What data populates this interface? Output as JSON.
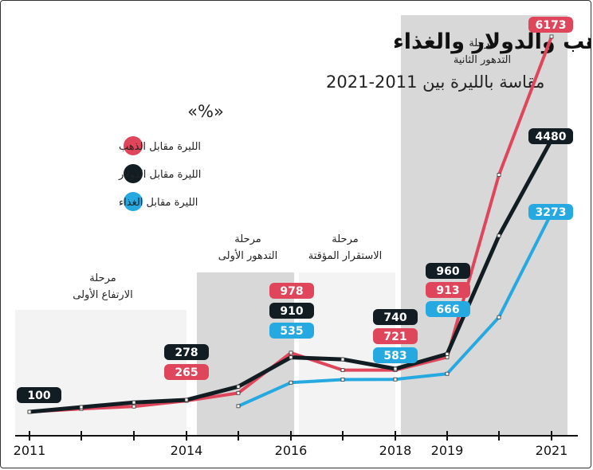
{
  "chart_data": {
    "type": "line",
    "title": "تضاعف أسعار الذهب والدولار والغذاء",
    "subtitle": "مقاسة بالليرة بين 2011-2021",
    "unit": "«%»",
    "x": [
      2011,
      2012,
      2013,
      2014,
      2015,
      2016,
      2017,
      2018,
      2019,
      2020,
      2021
    ],
    "x_ticks": [
      "2011",
      "2014",
      "2016",
      "2018",
      "2019",
      "2021"
    ],
    "x_tick_values": [
      2011,
      2014,
      2016,
      2018,
      2019,
      2021
    ],
    "xlim": [
      2011,
      2021
    ],
    "ylim": [
      0,
      6400
    ],
    "grid": false,
    "legend_position": "top-left",
    "colors": {
      "gold": "#e0465b",
      "dollar": "#111d22",
      "food": "#25a9e0"
    },
    "series": [
      {
        "key": "dollar",
        "name": "الليرة مقابل الدولار",
        "color": "#111d22",
        "values": [
          100,
          170,
          240,
          278,
          475,
          910,
          880,
          740,
          960,
          2900,
          4480
        ]
      },
      {
        "key": "gold",
        "name": "الليرة مقابل الذهب",
        "color": "#e0465b",
        "values": [
          100,
          145,
          180,
          265,
          380,
          978,
          721,
          721,
          913,
          3900,
          6173
        ]
      },
      {
        "key": "food",
        "name": "الليرة مقابل الغذاء",
        "color": "#25a9e0",
        "values": [
          null,
          null,
          null,
          null,
          185,
          535,
          580,
          583,
          666,
          1560,
          3273
        ]
      }
    ],
    "phases": [
      {
        "label_line1": "مرحلة",
        "label_line2": "الارتفاع الأولى",
        "from": 2011,
        "to": 2014,
        "shade": "#f3f3f3"
      },
      {
        "label_line1": "مرحلة",
        "label_line2": "التدهور الأولى",
        "from": 2014,
        "to": 2015.5,
        "shade": "#d8d8d8"
      },
      {
        "label_line1": "مرحلة",
        "label_line2": "الاستقرار المؤقتة",
        "from": 2015.5,
        "to": 2018,
        "shade": "#f3f3f3"
      },
      {
        "label_line1": "مرحلة",
        "label_line2": "التدهور الثانية",
        "from": 2018,
        "to": 2021.5,
        "shade": "#d8d8d8"
      }
    ],
    "value_labels": [
      {
        "series": "dollar",
        "x": 2011,
        "text": "100"
      },
      {
        "series": "dollar",
        "x": 2014,
        "text": "278"
      },
      {
        "series": "gold",
        "x": 2014,
        "text": "265"
      },
      {
        "series": "gold",
        "x": 2016,
        "text": "978"
      },
      {
        "series": "dollar",
        "x": 2016,
        "text": "910"
      },
      {
        "series": "food",
        "x": 2016,
        "text": "535"
      },
      {
        "series": "dollar",
        "x": 2018,
        "text": "740"
      },
      {
        "series": "gold",
        "x": 2018,
        "text": "721"
      },
      {
        "series": "food",
        "x": 2018,
        "text": "583"
      },
      {
        "series": "dollar",
        "x": 2019,
        "text": "960"
      },
      {
        "series": "gold",
        "x": 2019,
        "text": "913"
      },
      {
        "series": "food",
        "x": 2019,
        "text": "666"
      },
      {
        "series": "gold",
        "x": 2021,
        "text": "6173"
      },
      {
        "series": "dollar",
        "x": 2021,
        "text": "4480"
      },
      {
        "series": "food",
        "x": 2021,
        "text": "3273"
      }
    ]
  }
}
